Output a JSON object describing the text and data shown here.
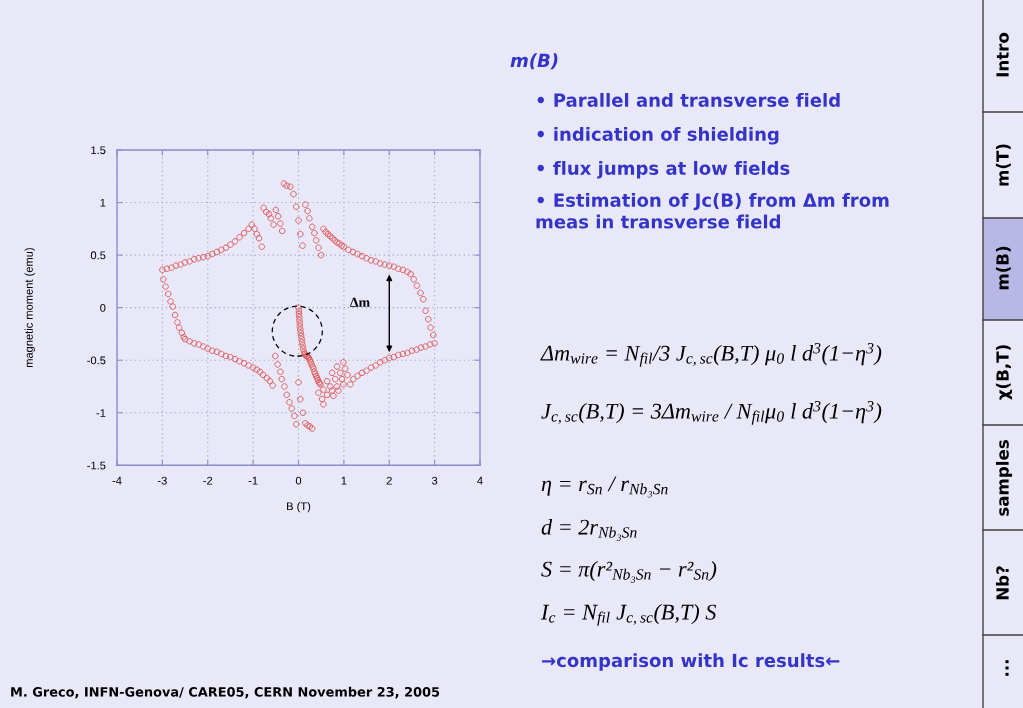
{
  "chart_data": {
    "type": "scatter",
    "title": "m(B)",
    "xlabel": "B (T)",
    "ylabel": "magnetic moment (emu)",
    "xlim": [
      -4,
      4
    ],
    "ylim": [
      -1.5,
      1.5
    ],
    "xticks": [
      -4,
      -3,
      -2,
      -1,
      0,
      1,
      2,
      3,
      4
    ],
    "yticks": [
      -1.5,
      -1,
      -0.5,
      0,
      0.5,
      1,
      1.5
    ],
    "grid": true,
    "marker": "circle",
    "series": [
      {
        "color": "#e05c5c",
        "x": [
          -3.0,
          -2.9,
          -2.8,
          -2.7,
          -2.6,
          -2.5,
          -2.4,
          -2.3,
          -2.2,
          -2.1,
          -2.0,
          -1.9,
          -1.8,
          -1.7,
          -1.6,
          -1.5,
          -1.4,
          -1.3,
          -1.2,
          -1.1,
          -1.03,
          -0.97,
          -0.92,
          -0.87,
          -0.81,
          -0.77,
          -0.71,
          -0.65,
          -0.61,
          -0.55,
          -0.5,
          -0.45,
          -0.4,
          -0.36,
          -0.32,
          -0.26,
          -0.18,
          -0.11,
          -0.05,
          0.0,
          0.04,
          0.09,
          0.15,
          0.2,
          0.24,
          0.3,
          0.35,
          0.39,
          0.44,
          0.5,
          0.55,
          0.6,
          0.65,
          0.7,
          0.75,
          0.8,
          0.85,
          0.9,
          0.95,
          1.0,
          1.1,
          1.2,
          1.3,
          1.4,
          1.5,
          1.6,
          1.7,
          1.8,
          1.9,
          2.0,
          2.1,
          2.2,
          2.3,
          2.4,
          2.47,
          2.54,
          2.61,
          2.69,
          2.75,
          2.8,
          2.86,
          2.91,
          2.97,
          3.0,
          2.9,
          2.8,
          2.7,
          2.6,
          2.5,
          2.4,
          2.3,
          2.2,
          2.1,
          2.0,
          1.9,
          1.8,
          1.7,
          1.6,
          1.5,
          1.4,
          1.3,
          1.21,
          1.14,
          0.99,
          0.85,
          1.03,
          0.74,
          0.92,
          1.08,
          0.63,
          0.81,
          0.96,
          0.7,
          0.85,
          0.99,
          0.55,
          0.74,
          0.88,
          0.44,
          0.63,
          0.77,
          0.52,
          0.55,
          0.15,
          0.17,
          0.19,
          0.21,
          0.23,
          0.25,
          0.27,
          0.29,
          0.31,
          0.33,
          0.35,
          0.37,
          0.39,
          0.41,
          0.43,
          0.45,
          0.47,
          0.48,
          0.0,
          0.01,
          0.01,
          0.02,
          0.02,
          0.03,
          0.03,
          0.04,
          0.05,
          0.06,
          0.07,
          0.08,
          0.09,
          0.1,
          0.12,
          0.14,
          0.0,
          0.04,
          0.1,
          0.15,
          0.2,
          0.25,
          0.3,
          -0.51,
          -0.46,
          -0.4,
          -0.37,
          -0.31,
          -0.26,
          -0.2,
          -0.15,
          -0.09,
          -0.05,
          -2.5,
          -2.4,
          -2.3,
          -2.2,
          -2.1,
          -2.0,
          -1.9,
          -1.8,
          -1.7,
          -1.6,
          -1.5,
          -1.4,
          -1.3,
          -1.2,
          -1.1,
          -1.0,
          -0.92,
          -0.85,
          -0.78,
          -0.7,
          -0.63,
          -0.57,
          -2.98,
          -2.93,
          -2.87,
          -2.82,
          -2.77,
          -2.72,
          -2.67,
          -2.63,
          -2.57,
          -2.53
        ],
        "values": [
          0.36,
          0.37,
          0.38,
          0.4,
          0.41,
          0.43,
          0.44,
          0.46,
          0.47,
          0.48,
          0.49,
          0.51,
          0.53,
          0.55,
          0.57,
          0.6,
          0.63,
          0.67,
          0.71,
          0.75,
          0.79,
          0.75,
          0.7,
          0.66,
          0.58,
          0.95,
          0.91,
          0.89,
          0.85,
          0.79,
          0.93,
          0.87,
          0.8,
          0.73,
          1.18,
          1.16,
          1.15,
          1.08,
          0.96,
          0.83,
          0.7,
          0.59,
          0.98,
          0.92,
          0.85,
          0.77,
          0.71,
          0.64,
          0.57,
          0.5,
          0.75,
          0.72,
          0.7,
          0.68,
          0.66,
          0.64,
          0.62,
          0.61,
          0.59,
          0.58,
          0.55,
          0.53,
          0.51,
          0.49,
          0.47,
          0.45,
          0.44,
          0.42,
          0.41,
          0.4,
          0.39,
          0.37,
          0.36,
          0.34,
          0.32,
          0.27,
          0.21,
          0.14,
          0.08,
          -0.03,
          -0.11,
          -0.19,
          -0.26,
          -0.34,
          -0.35,
          -0.37,
          -0.38,
          -0.4,
          -0.41,
          -0.43,
          -0.44,
          -0.45,
          -0.47,
          -0.48,
          -0.5,
          -0.52,
          -0.55,
          -0.57,
          -0.6,
          -0.62,
          -0.65,
          -0.68,
          -0.73,
          -0.52,
          -0.56,
          -0.58,
          -0.62,
          -0.62,
          -0.64,
          -0.7,
          -0.68,
          -0.68,
          -0.75,
          -0.75,
          -0.73,
          -0.78,
          -0.79,
          -0.79,
          -0.81,
          -0.83,
          -0.84,
          -0.87,
          -0.92,
          -0.45,
          -0.46,
          -0.46,
          -0.47,
          -0.48,
          -0.5,
          -0.52,
          -0.54,
          -0.56,
          -0.58,
          -0.61,
          -0.63,
          -0.65,
          -0.67,
          -0.69,
          -0.71,
          -0.72,
          -0.73,
          0.0,
          -0.03,
          -0.06,
          -0.09,
          -0.12,
          -0.15,
          -0.18,
          -0.21,
          -0.24,
          -0.27,
          -0.3,
          -0.33,
          -0.36,
          -0.39,
          -0.42,
          -0.44,
          -0.71,
          -0.87,
          -1.0,
          -1.1,
          -1.12,
          -1.13,
          -1.15,
          -0.46,
          -0.54,
          -0.61,
          -0.68,
          -0.75,
          -0.83,
          -0.9,
          -0.96,
          -1.03,
          -1.11,
          -0.3,
          -0.32,
          -0.34,
          -0.35,
          -0.37,
          -0.39,
          -0.41,
          -0.42,
          -0.44,
          -0.46,
          -0.47,
          -0.49,
          -0.51,
          -0.53,
          -0.55,
          -0.57,
          -0.59,
          -0.61,
          -0.64,
          -0.67,
          -0.7,
          -0.74,
          0.27,
          0.2,
          0.13,
          0.06,
          0.01,
          -0.07,
          -0.14,
          -0.19,
          -0.24,
          -0.28
        ]
      }
    ],
    "annotations": [
      "• Parallel and transverse field",
      "• indication of shielding",
      "• flux jumps at low fields",
      "• Estimation of Jc(B) from Δm from meas in transverse field",
      "Δm$_{wire}$ = N$_{fil}$/3 J$_{c,sc}$(B,T) μ$_{0}$ l d$^{3}$(1−η$^{3}$)",
      "J$_{c,sc}$(B,T) = 3Δm$_{wire}$ / N$_{fil}$μ$_{0}$ l d$^{3}$(1−η$^{3}$)",
      "η = r$_{Sn}$ / r$_{Nb₃Sn}$",
      "d = 2r$_{Nb₃Sn}$",
      "S = π(r²$_{Nb₃Sn}$ − r²$_{Sn}$)",
      "I$_{c}$ = N$_{fil}$ J$_{c,sc}$(B,T) S",
      "→comparison with Ic results←",
      "M. Greco, INFN-Genova/ CARE05, CERN November 23, 2005",
      "Intro",
      "m(T)",
      "m(B)",
      "χ(B,T)",
      "samples",
      "Nb?",
      "...",
      "Δm"
    ]
  }
}
